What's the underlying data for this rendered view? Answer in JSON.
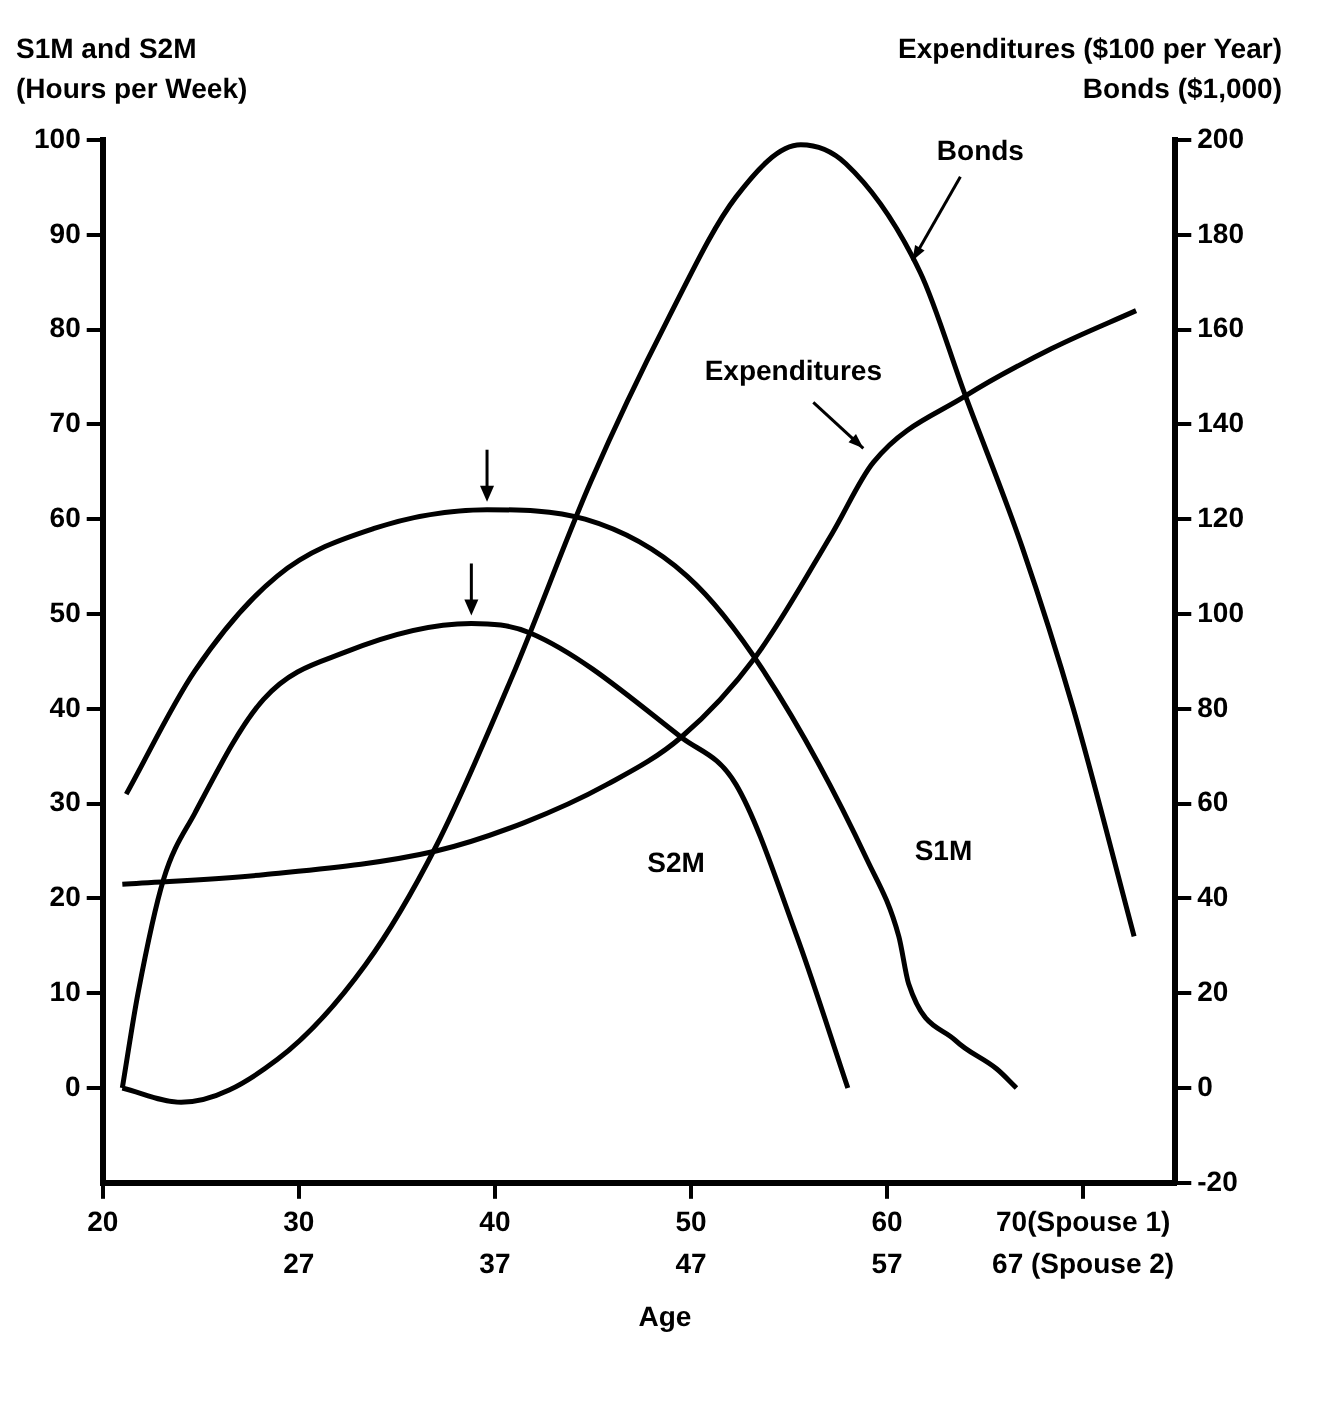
{
  "chart_data": {
    "type": "line",
    "xlabel": "Age",
    "ylabel": "S1M and S2M\n(Hours per Week)",
    "y2label": "Expenditures ($100 per Year)\nBonds ($1,000)",
    "xlim": [
      20,
      74.7
    ],
    "xticks": [
      20,
      30,
      40,
      50,
      60,
      {
        "value": 70,
        "label": "70(Spouse 1)"
      }
    ],
    "x2lim": [
      17,
      71.7
    ],
    "x2ticks": [
      27,
      37,
      47,
      57,
      {
        "value": 67,
        "label": "67 (Spouse 2)"
      }
    ],
    "ylim": [
      -10,
      100
    ],
    "yticks": [
      0,
      10,
      20,
      30,
      40,
      50,
      60,
      70,
      80,
      90,
      100
    ],
    "y2lim": [
      -20,
      200
    ],
    "y2ticks": [
      -20,
      0,
      20,
      40,
      60,
      80,
      100,
      120,
      140,
      160,
      180,
      200
    ],
    "grid": false,
    "legend": false,
    "marker": "none",
    "line_style": "solid",
    "series": [
      {
        "name": "S1M",
        "color": "#000000",
        "x": [
          21.2,
          24.7,
          28.9,
          33.8,
          39.6,
          44.6,
          49.8,
          53.7,
          59,
          60.6,
          61.1,
          63.5,
          65.6,
          66.6
        ],
        "values": [
          31,
          44,
          54,
          59,
          61,
          60,
          54,
          44,
          24,
          16,
          11,
          5,
          2,
          0
        ]
      },
      {
        "name": "S2M",
        "color": "#000000",
        "x": [
          21,
          21.8,
          23.1,
          24.7,
          28.2,
          32.4,
          38.8,
          41.8,
          49.5,
          52.3,
          55.4,
          58
        ],
        "values": [
          0,
          10,
          22,
          29,
          41,
          46,
          49,
          48,
          37,
          32,
          16,
          0
        ]
      },
      {
        "name": "Expenditures",
        "color": "#000000",
        "axis": "y2",
        "x": [
          21,
          28.2,
          37,
          41.5,
          45.7,
          49.5,
          53.3,
          57.2,
          59.3,
          64,
          68.4,
          72.7
        ],
        "values": [
          43,
          45,
          50,
          56,
          64,
          74,
          91,
          117,
          132,
          146,
          156,
          164
        ]
      },
      {
        "name": "Bonds",
        "color": "#000000",
        "axis": "y2",
        "x": [
          21,
          24,
          28.9,
          33.4,
          37,
          40.9,
          44.9,
          48.8,
          52.3,
          55.6,
          57.9,
          61.7,
          64,
          66.9,
          69.5,
          72.6
        ],
        "values": [
          0,
          -3,
          6,
          26,
          51,
          87,
          128,
          162,
          188,
          199,
          195,
          172,
          146,
          114,
          80,
          32
        ]
      }
    ]
  }
}
